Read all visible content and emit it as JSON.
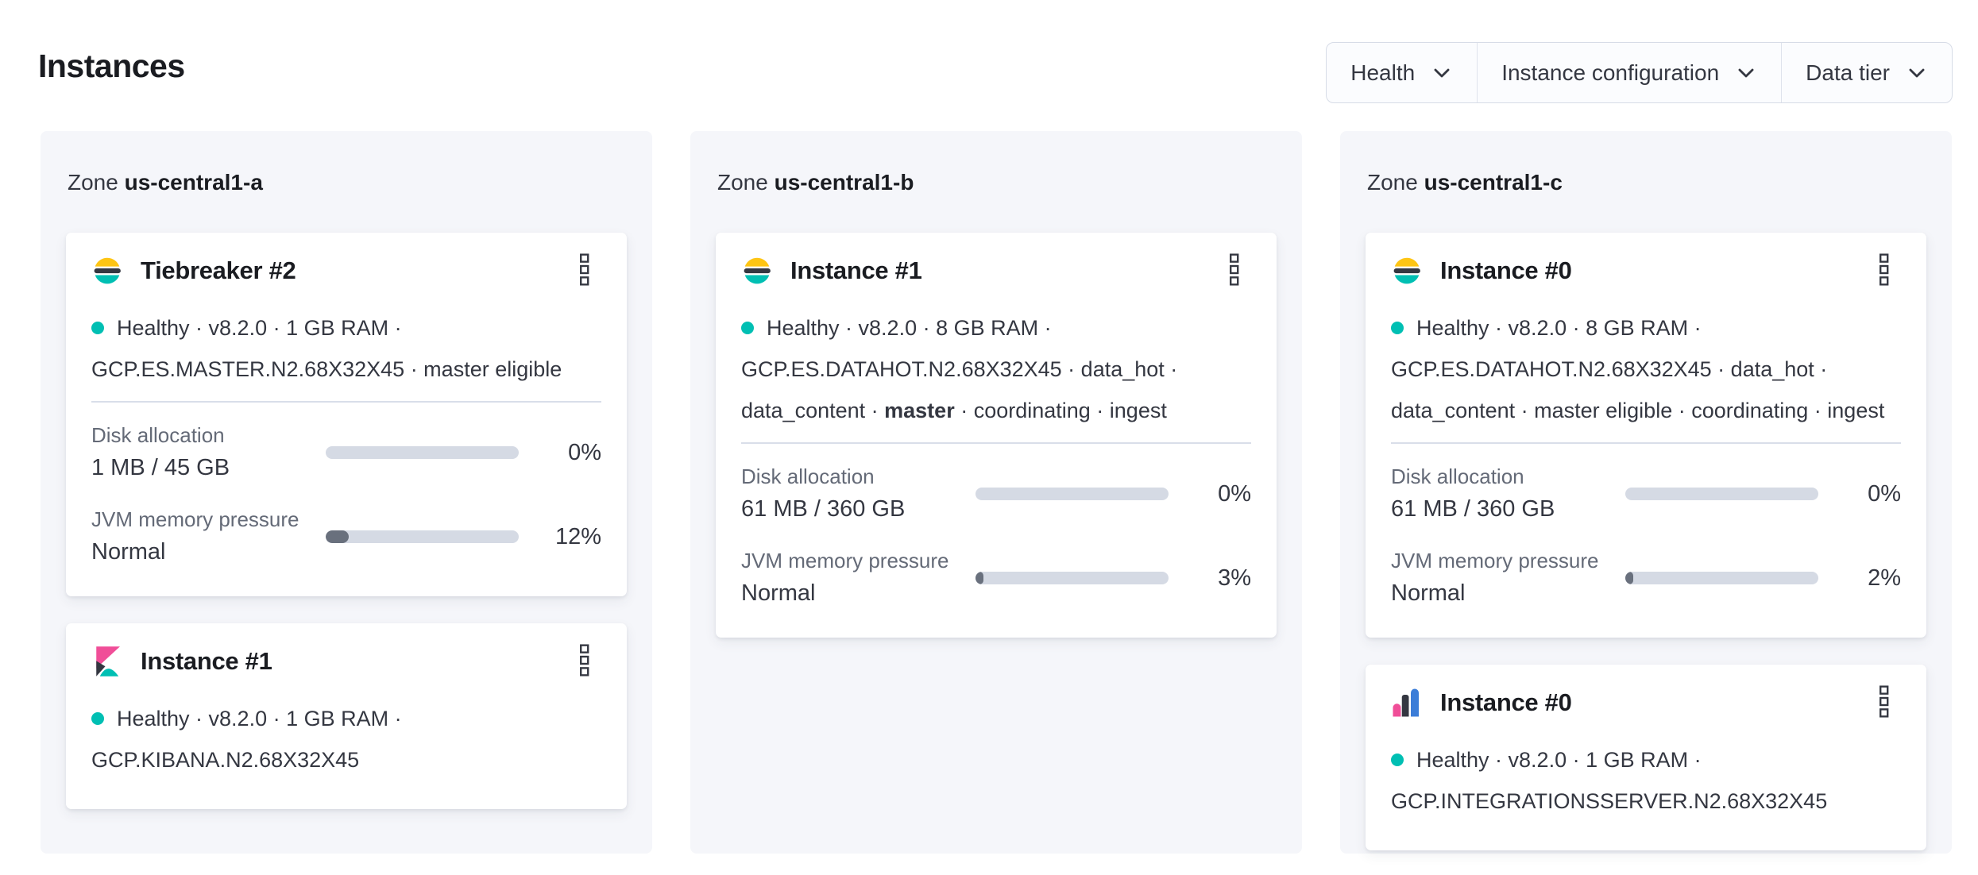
{
  "page": {
    "title": "Instances"
  },
  "filters": [
    {
      "label": "Health"
    },
    {
      "label": "Instance configuration"
    },
    {
      "label": "Data tier"
    }
  ],
  "colors": {
    "accent_teal": "#00BFB3",
    "logo_yellow": "#FEC514",
    "logo_dark": "#343741",
    "kibana_pink": "#F04E98",
    "integrations_blue": "#3B7DD8",
    "meter_track": "#D5DAE4",
    "meter_fill": "#69707D",
    "panel_bg": "#F5F6FA",
    "text": "#343741",
    "text_subdued": "#646A77",
    "title_text": "#1A1C21"
  },
  "zones": [
    {
      "label_prefix": "Zone",
      "name": "us-central1-a",
      "cards": [
        {
          "logo": "elasticsearch",
          "title": "Tiebreaker #2",
          "health": "Healthy",
          "status_lines": [
            [
              {
                "t": "Healthy · v8.2.0 · 1 GB RAM ·"
              }
            ],
            [
              {
                "t": "GCP.ES.MASTER.N2.68X32X45 · master eligible"
              }
            ]
          ],
          "metrics": [
            {
              "label": "Disk allocation",
              "value": "1 MB / 45 GB",
              "percent": "0%",
              "fill_pct": 0
            },
            {
              "label": "JVM memory pressure",
              "value": "Normal",
              "percent": "12%",
              "fill_pct": 12
            }
          ]
        },
        {
          "logo": "kibana",
          "title": "Instance #1",
          "health": "Healthy",
          "status_lines": [
            [
              {
                "t": "Healthy · v8.2.0 · 1 GB RAM ·"
              }
            ],
            [
              {
                "t": "GCP.KIBANA.N2.68X32X45"
              }
            ]
          ],
          "metrics": []
        }
      ]
    },
    {
      "label_prefix": "Zone",
      "name": "us-central1-b",
      "cards": [
        {
          "logo": "elasticsearch",
          "title": "Instance #1",
          "health": "Healthy",
          "status_lines": [
            [
              {
                "t": "Healthy · v8.2.0 · 8 GB RAM ·"
              }
            ],
            [
              {
                "t": "GCP.ES.DATAHOT.N2.68X32X45 · data_hot ·"
              }
            ],
            [
              {
                "t": "data_content · "
              },
              {
                "t": "master",
                "b": true
              },
              {
                "t": " · coordinating · ingest"
              }
            ]
          ],
          "metrics": [
            {
              "label": "Disk allocation",
              "value": "61 MB / 360 GB",
              "percent": "0%",
              "fill_pct": 0
            },
            {
              "label": "JVM memory pressure",
              "value": "Normal",
              "percent": "3%",
              "fill_pct": 3
            }
          ]
        }
      ]
    },
    {
      "label_prefix": "Zone",
      "name": "us-central1-c",
      "cards": [
        {
          "logo": "elasticsearch",
          "title": "Instance #0",
          "health": "Healthy",
          "status_lines": [
            [
              {
                "t": "Healthy · v8.2.0 · 8 GB RAM ·"
              }
            ],
            [
              {
                "t": "GCP.ES.DATAHOT.N2.68X32X45 · data_hot ·"
              }
            ],
            [
              {
                "t": "data_content · master eligible · coordinating · ingest"
              }
            ]
          ],
          "metrics": [
            {
              "label": "Disk allocation",
              "value": "61 MB / 360 GB",
              "percent": "0%",
              "fill_pct": 0
            },
            {
              "label": "JVM memory pressure",
              "value": "Normal",
              "percent": "2%",
              "fill_pct": 2
            }
          ]
        },
        {
          "logo": "integrations-server",
          "title": "Instance #0",
          "health": "Healthy",
          "status_lines": [
            [
              {
                "t": "Healthy · v8.2.0 · 1 GB RAM ·"
              }
            ],
            [
              {
                "t": "GCP.INTEGRATIONSSERVER.N2.68X32X45"
              }
            ]
          ],
          "metrics": []
        }
      ]
    }
  ]
}
